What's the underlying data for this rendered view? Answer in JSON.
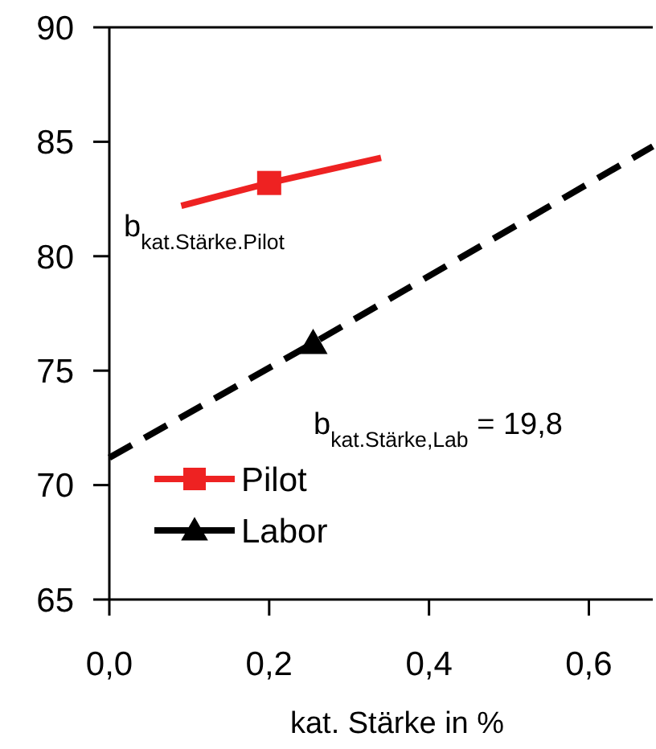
{
  "chart_data": {
    "type": "line",
    "xlabel": "kat. Stärke in %",
    "xlim": [
      0,
      0.68
    ],
    "xticks": [
      {
        "value": 0,
        "label": "0,0"
      },
      {
        "value": 0.2,
        "label": "0,2"
      },
      {
        "value": 0.4,
        "label": "0,4"
      },
      {
        "value": 0.6,
        "label": "0,6"
      }
    ],
    "ylim": [
      65,
      90
    ],
    "yticks": [
      65,
      70,
      75,
      80,
      85,
      90
    ],
    "grid": false,
    "legend": "bottom left",
    "series": [
      {
        "name": "Pilot",
        "color": "#ee2222",
        "line_style": "solid",
        "x": [
          0.09,
          0.2,
          0.34
        ],
        "values": [
          82.2,
          83.2,
          84.3
        ]
      },
      {
        "type": "scatter",
        "color": "#ee2222",
        "marker": "square",
        "x": [
          0.2
        ],
        "values": [
          83.2
        ]
      },
      {
        "name": "Labor",
        "color": "#000000",
        "line_style": "dashed",
        "x": [
          0,
          0.255,
          0.68
        ],
        "values": [
          71.2,
          76.2,
          84.8
        ]
      },
      {
        "type": "scatter",
        "color": "#000000",
        "marker": "triangle",
        "x": [
          0.255
        ],
        "values": [
          76.2
        ]
      }
    ],
    "annotations": [
      "b$_{kat.Stärke.Pilot}$",
      "b$_{kat.Stärke,Lab}$ = 19,8"
    ]
  }
}
